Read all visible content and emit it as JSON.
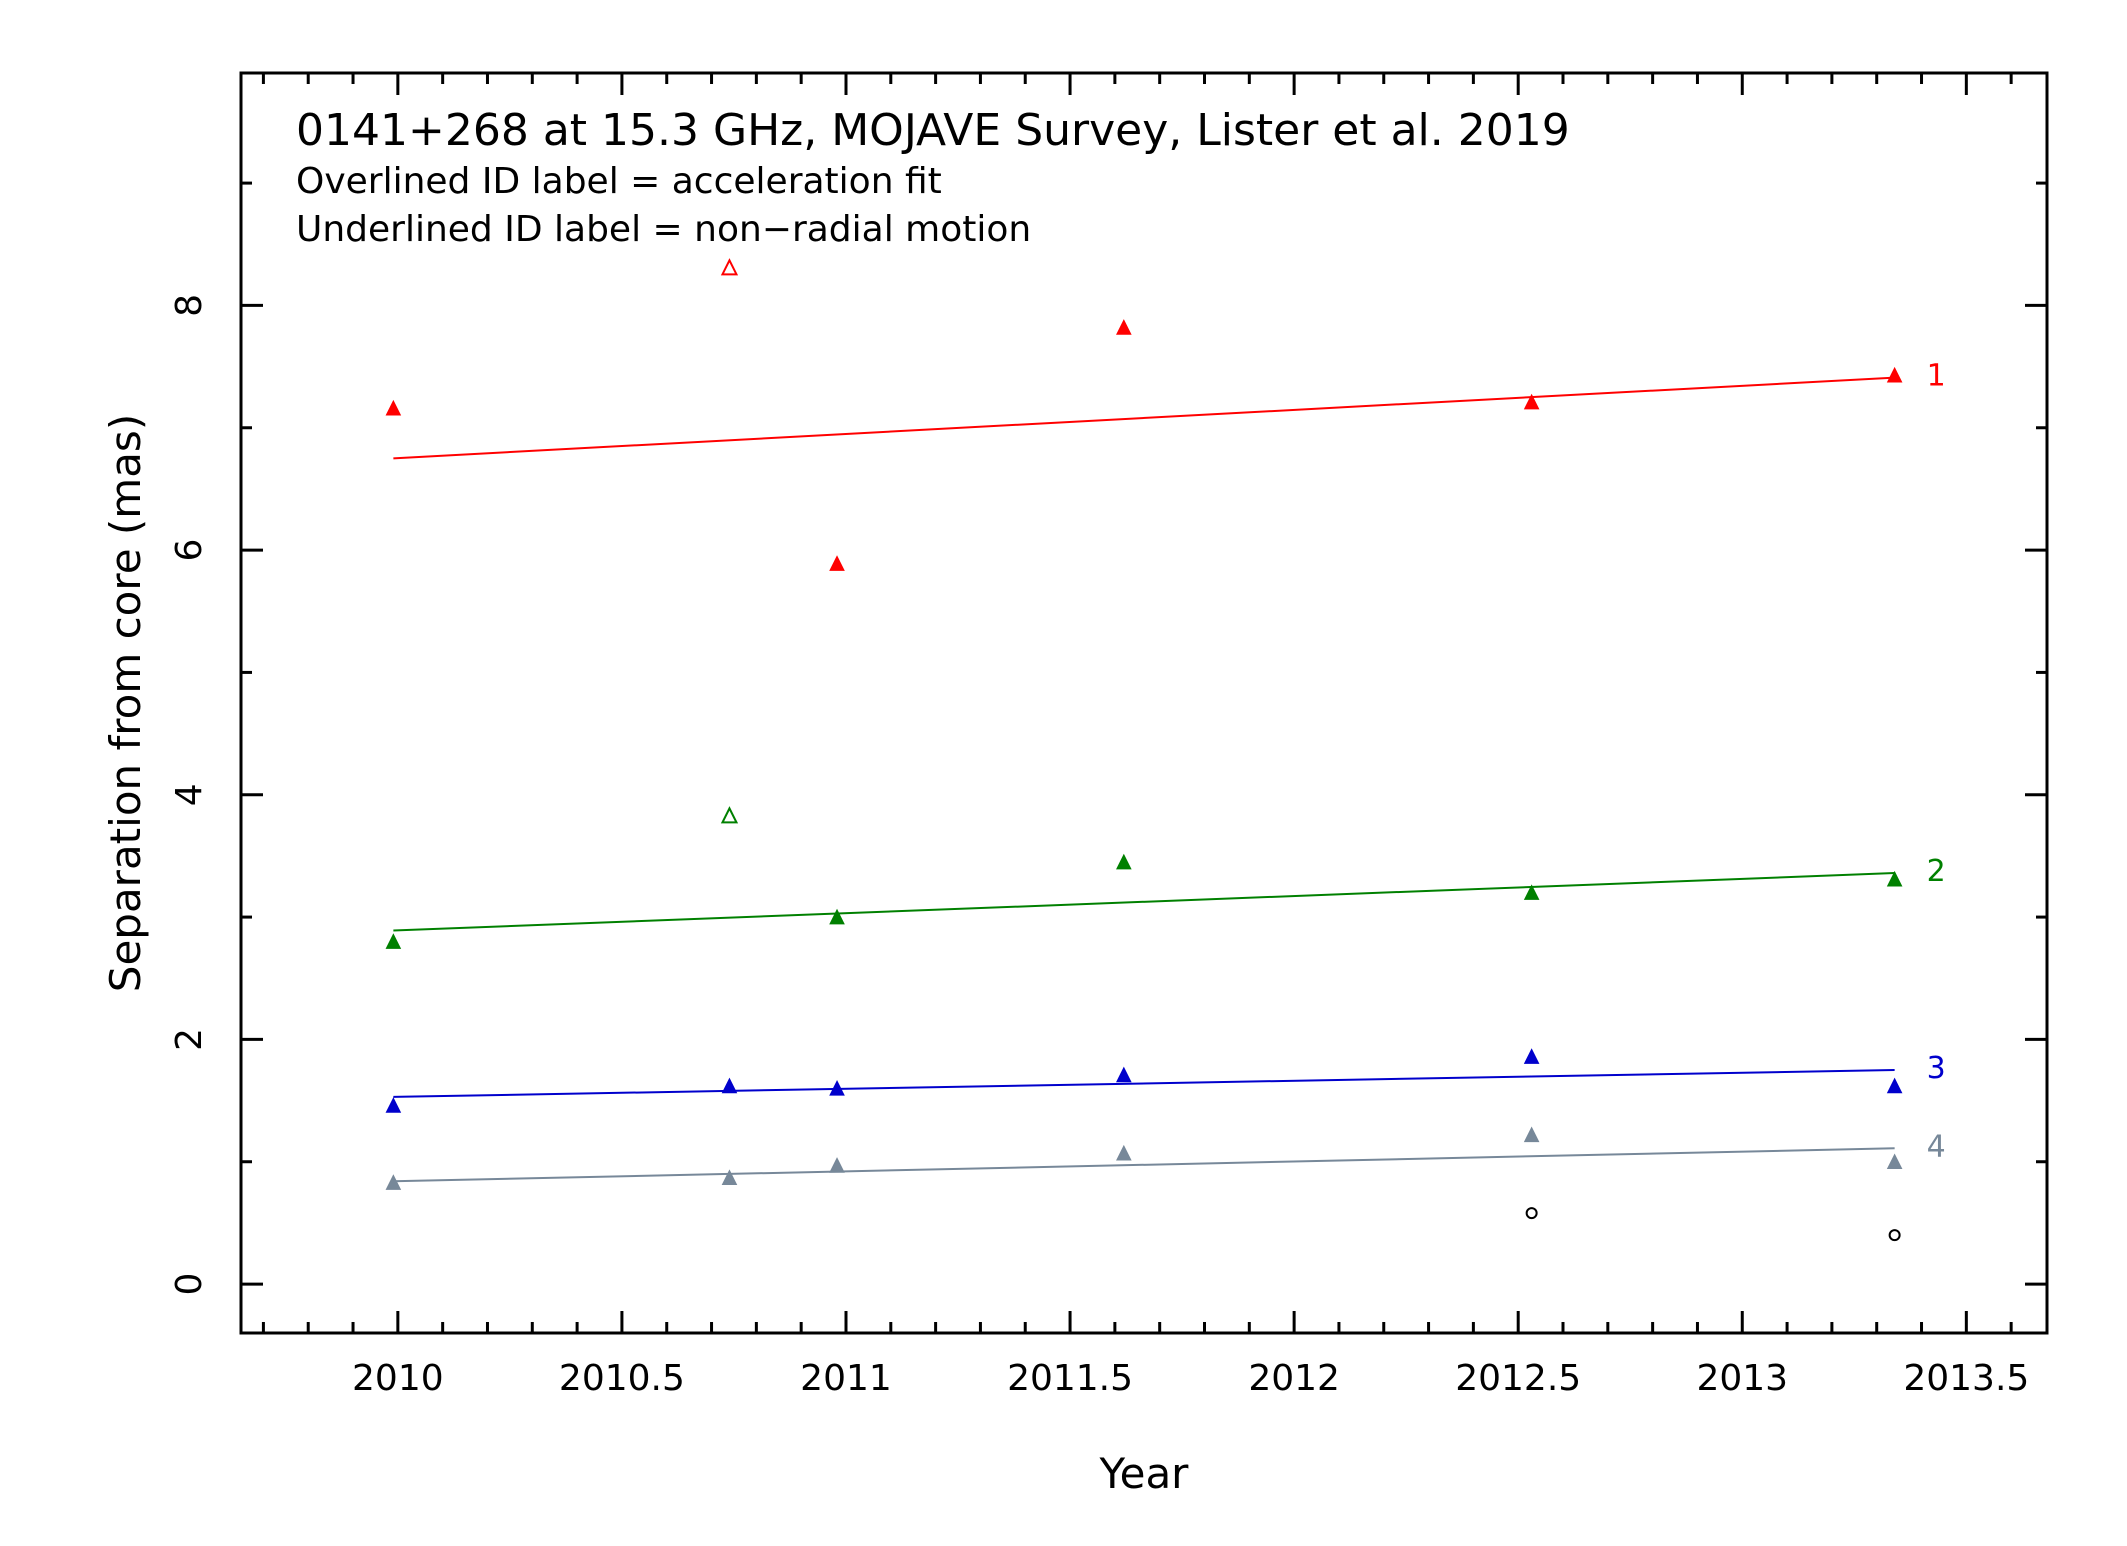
{
  "chart_data": {
    "type": "scatter",
    "title": "0141+268 at 15.3 GHz, MOJAVE Survey, Lister et al. 2019",
    "subtitle_lines": [
      "Overlined ID label = acceleration fit",
      "Underlined ID label = non−radial motion"
    ],
    "xlabel": "Year",
    "ylabel": "Separation from core (mas)",
    "xlim": [
      2009.65,
      2013.68
    ],
    "ylim": [
      -0.4,
      9.9
    ],
    "x_ticks": [
      2010,
      2010.5,
      2011,
      2011.5,
      2012,
      2012.5,
      2013,
      2013.5
    ],
    "x_tick_labels": [
      "2010",
      "2010.5",
      "2011",
      "2011.5",
      "2012",
      "2012.5",
      "2013",
      "2013.5"
    ],
    "y_ticks": [
      0,
      2,
      4,
      6,
      8
    ],
    "y_tick_labels": [
      "0",
      "2",
      "4",
      "6",
      "8"
    ],
    "grid": false,
    "series": [
      {
        "name": "1",
        "color": "#ff0000",
        "points": [
          {
            "x": 2009.99,
            "y": 7.15
          },
          {
            "x": 2010.74,
            "y": 8.3,
            "open": true
          },
          {
            "x": 2010.98,
            "y": 5.88
          },
          {
            "x": 2011.62,
            "y": 7.81
          },
          {
            "x": 2012.53,
            "y": 7.2
          },
          {
            "x": 2013.34,
            "y": 7.42
          }
        ],
        "fit": {
          "x": [
            2009.99,
            2013.34
          ],
          "y": [
            6.75,
            7.41
          ]
        }
      },
      {
        "name": "2",
        "color": "#008000",
        "points": [
          {
            "x": 2009.99,
            "y": 2.79
          },
          {
            "x": 2010.74,
            "y": 3.82,
            "open": true
          },
          {
            "x": 2010.98,
            "y": 2.99
          },
          {
            "x": 2011.62,
            "y": 3.44
          },
          {
            "x": 2012.53,
            "y": 3.19
          },
          {
            "x": 2013.34,
            "y": 3.3
          }
        ],
        "fit": {
          "x": [
            2009.99,
            2013.34
          ],
          "y": [
            2.89,
            3.36
          ]
        }
      },
      {
        "name": "3",
        "color": "#0000cc",
        "points": [
          {
            "x": 2009.99,
            "y": 1.45
          },
          {
            "x": 2010.74,
            "y": 1.61
          },
          {
            "x": 2010.98,
            "y": 1.59
          },
          {
            "x": 2011.62,
            "y": 1.7
          },
          {
            "x": 2012.53,
            "y": 1.85
          },
          {
            "x": 2013.34,
            "y": 1.61
          }
        ],
        "fit": {
          "x": [
            2009.99,
            2013.34
          ],
          "y": [
            1.53,
            1.75
          ]
        }
      },
      {
        "name": "4",
        "color": "#778899",
        "points": [
          {
            "x": 2009.99,
            "y": 0.82
          },
          {
            "x": 2010.74,
            "y": 0.86
          },
          {
            "x": 2010.98,
            "y": 0.96
          },
          {
            "x": 2011.62,
            "y": 1.06
          },
          {
            "x": 2012.53,
            "y": 1.21
          },
          {
            "x": 2013.34,
            "y": 0.99
          }
        ],
        "fit": {
          "x": [
            2009.99,
            2013.34
          ],
          "y": [
            0.84,
            1.11
          ]
        }
      }
    ],
    "unassigned_points": {
      "color": "#000000",
      "marker": "open-circle",
      "points": [
        {
          "x": 2012.53,
          "y": 0.58
        },
        {
          "x": 2013.34,
          "y": 0.4
        }
      ]
    }
  }
}
